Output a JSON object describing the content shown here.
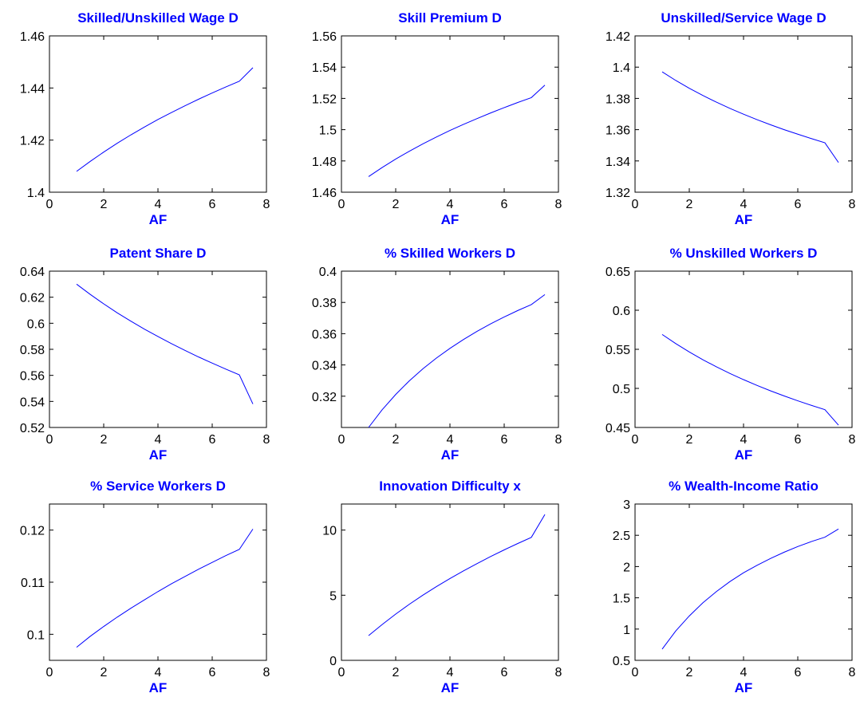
{
  "figure": {
    "colors": {
      "line": "#0000ff",
      "title": "#0000ff",
      "axis": "#000000",
      "background": "#ffffff"
    }
  },
  "chart_data": [
    {
      "type": "line",
      "title": "Skilled/Unskilled Wage D",
      "xlabel": "AF",
      "ylabel": "",
      "xlim": [
        0,
        8
      ],
      "ylim": [
        1.4,
        1.46
      ],
      "xticks": [
        "0",
        "2",
        "4",
        "6",
        "8"
      ],
      "yticks": [
        "1.4",
        "1.42",
        "1.44",
        "1.46"
      ],
      "grid": false,
      "series": [
        {
          "x": [
            1,
            1.5,
            2,
            2.5,
            3,
            3.5,
            4,
            4.5,
            5,
            5.5,
            6,
            6.5,
            7,
            7.5
          ],
          "y": [
            1.408,
            1.4118,
            1.4154,
            1.4188,
            1.422,
            1.425,
            1.4279,
            1.4306,
            1.4332,
            1.4357,
            1.4381,
            1.4404,
            1.4426,
            1.4478
          ]
        }
      ]
    },
    {
      "type": "line",
      "title": "Skill Premium D",
      "xlabel": "AF",
      "ylabel": "",
      "xlim": [
        0,
        8
      ],
      "ylim": [
        1.46,
        1.56
      ],
      "xticks": [
        "0",
        "2",
        "4",
        "6",
        "8"
      ],
      "yticks": [
        "1.46",
        "1.48",
        "1.5",
        "1.52",
        "1.54",
        "1.56"
      ],
      "grid": false,
      "series": [
        {
          "x": [
            1,
            1.5,
            2,
            2.5,
            3,
            3.5,
            4,
            4.5,
            5,
            5.5,
            6,
            6.5,
            7,
            7.5
          ],
          "y": [
            1.47,
            1.4758,
            1.4812,
            1.4862,
            1.4909,
            1.4953,
            1.4995,
            1.5034,
            1.5071,
            1.5107,
            1.5141,
            1.5174,
            1.5205,
            1.5285
          ]
        }
      ]
    },
    {
      "type": "line",
      "title": "Unskilled/Service Wage D",
      "xlabel": "AF",
      "ylabel": "",
      "xlim": [
        0,
        8
      ],
      "ylim": [
        1.32,
        1.42
      ],
      "xticks": [
        "0",
        "2",
        "4",
        "6",
        "8"
      ],
      "yticks": [
        "1.32",
        "1.34",
        "1.36",
        "1.38",
        "1.4",
        "1.42"
      ],
      "grid": false,
      "series": [
        {
          "x": [
            1,
            1.5,
            2,
            2.5,
            3,
            3.5,
            4,
            4.5,
            5,
            5.5,
            6,
            6.5,
            7,
            7.5
          ],
          "y": [
            1.397,
            1.3915,
            1.3865,
            1.3819,
            1.3776,
            1.3736,
            1.3699,
            1.3664,
            1.3631,
            1.36,
            1.3571,
            1.3543,
            1.3516,
            1.339
          ]
        }
      ]
    },
    {
      "type": "line",
      "title": "Patent Share D",
      "xlabel": "AF",
      "ylabel": "",
      "xlim": [
        0,
        8
      ],
      "ylim": [
        0.52,
        0.64
      ],
      "xticks": [
        "0",
        "2",
        "4",
        "6",
        "8"
      ],
      "yticks": [
        "0.52",
        "0.54",
        "0.56",
        "0.58",
        "0.6",
        "0.62",
        "0.64"
      ],
      "grid": false,
      "series": [
        {
          "x": [
            1,
            1.5,
            2,
            2.5,
            3,
            3.5,
            4,
            4.5,
            5,
            5.5,
            6,
            6.5,
            7,
            7.5
          ],
          "y": [
            0.63,
            0.6222,
            0.6149,
            0.608,
            0.6016,
            0.5955,
            0.5898,
            0.5843,
            0.5791,
            0.5741,
            0.5694,
            0.5648,
            0.5604,
            0.538
          ]
        }
      ]
    },
    {
      "type": "line",
      "title": "% Skilled Workers D",
      "xlabel": "AF",
      "ylabel": "",
      "xlim": [
        0,
        8
      ],
      "ylim": [
        0.3,
        0.4
      ],
      "xticks": [
        "0",
        "2",
        "4",
        "6",
        "8"
      ],
      "yticks": [
        "0.32",
        "0.34",
        "0.36",
        "0.38",
        "0.4"
      ],
      "grid": false,
      "series": [
        {
          "x": [
            1,
            1.5,
            2,
            2.5,
            3,
            3.5,
            4,
            4.5,
            5,
            5.5,
            6,
            6.5,
            7,
            7.5
          ],
          "y": [
            0.3,
            0.3113,
            0.3211,
            0.3298,
            0.3375,
            0.3444,
            0.3506,
            0.3563,
            0.3615,
            0.3663,
            0.3707,
            0.3748,
            0.3786,
            0.385
          ]
        }
      ]
    },
    {
      "type": "line",
      "title": "% Unskilled Workers D",
      "xlabel": "AF",
      "ylabel": "",
      "xlim": [
        0,
        8
      ],
      "ylim": [
        0.45,
        0.65
      ],
      "xticks": [
        "0",
        "2",
        "4",
        "6",
        "8"
      ],
      "yticks": [
        "0.45",
        "0.5",
        "0.55",
        "0.6",
        "0.65"
      ],
      "grid": false,
      "series": [
        {
          "x": [
            1,
            1.5,
            2,
            2.5,
            3,
            3.5,
            4,
            4.5,
            5,
            5.5,
            6,
            6.5,
            7,
            7.5
          ],
          "y": [
            0.569,
            0.5573,
            0.5466,
            0.5367,
            0.5276,
            0.5191,
            0.5112,
            0.5038,
            0.4968,
            0.4903,
            0.4841,
            0.4783,
            0.4728,
            0.453
          ]
        }
      ]
    },
    {
      "type": "line",
      "title": "% Service Workers D",
      "xlabel": "AF",
      "ylabel": "",
      "xlim": [
        0,
        8
      ],
      "ylim": [
        0.095,
        0.125
      ],
      "xticks": [
        "0",
        "2",
        "4",
        "6",
        "8"
      ],
      "yticks": [
        "0.1",
        "0.11",
        "0.12"
      ],
      "grid": false,
      "series": [
        {
          "x": [
            1,
            1.5,
            2,
            2.5,
            3,
            3.5,
            4,
            4.5,
            5,
            5.5,
            6,
            6.5,
            7,
            7.5
          ],
          "y": [
            0.0975,
            0.0996,
            0.1015,
            0.1033,
            0.105,
            0.1066,
            0.1082,
            0.1097,
            0.1111,
            0.1125,
            0.1138,
            0.1151,
            0.1163,
            0.1202
          ]
        }
      ]
    },
    {
      "type": "line",
      "title": "Innovation Difficulty x",
      "xlabel": "AF",
      "ylabel": "",
      "xlim": [
        0,
        8
      ],
      "ylim": [
        0,
        12
      ],
      "xticks": [
        "0",
        "2",
        "4",
        "6",
        "8"
      ],
      "yticks": [
        "0",
        "5",
        "10"
      ],
      "grid": false,
      "series": [
        {
          "x": [
            1,
            1.5,
            2,
            2.5,
            3,
            3.5,
            4,
            4.5,
            5,
            5.5,
            6,
            6.5,
            7,
            7.5
          ],
          "y": [
            1.9,
            2.75,
            3.55,
            4.3,
            5.0,
            5.66,
            6.28,
            6.87,
            7.43,
            7.97,
            8.48,
            8.97,
            9.44,
            11.2
          ]
        }
      ]
    },
    {
      "type": "line",
      "title": "% Wealth-Income Ratio",
      "xlabel": "AF",
      "ylabel": "",
      "xlim": [
        0,
        8
      ],
      "ylim": [
        0.5,
        3
      ],
      "xticks": [
        "0",
        "2",
        "4",
        "6",
        "8"
      ],
      "yticks": [
        "0.5",
        "1",
        "1.5",
        "2",
        "2.5",
        "3"
      ],
      "grid": false,
      "series": [
        {
          "x": [
            1,
            1.5,
            2,
            2.5,
            3,
            3.5,
            4,
            4.5,
            5,
            5.5,
            6,
            6.5,
            7,
            7.5
          ],
          "y": [
            0.68,
            0.97,
            1.21,
            1.42,
            1.6,
            1.76,
            1.9,
            2.02,
            2.13,
            2.23,
            2.32,
            2.4,
            2.47,
            2.6
          ]
        }
      ]
    }
  ]
}
